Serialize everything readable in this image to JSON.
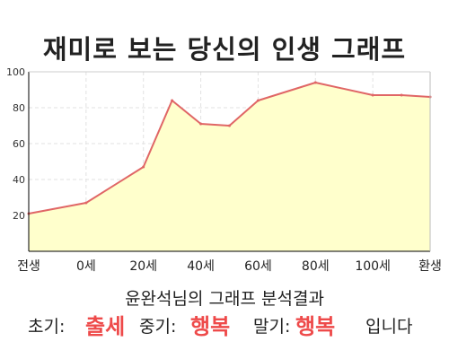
{
  "page": {
    "title": "재미로 보는 당신의 인생 그래프"
  },
  "chart_data": {
    "type": "area",
    "title": "재미로 보는 당신의 인생 그래프",
    "xlabel": "",
    "ylabel": "",
    "x_ticks": [
      "전생",
      "0세",
      "20세",
      "40세",
      "60세",
      "80세",
      "100세",
      "환생"
    ],
    "y_ticks": [
      20,
      40,
      60,
      80,
      100
    ],
    "ylim": [
      0,
      100
    ],
    "grid": true,
    "legend": "none",
    "line_color": "#e06666",
    "fill_color": "#ffffcc",
    "series": [
      {
        "x": [
          -20,
          0,
          20,
          30,
          40,
          50,
          60,
          80,
          100,
          110,
          120
        ],
        "values": [
          21,
          27,
          47,
          84,
          71,
          70,
          84,
          94,
          87,
          87,
          86
        ]
      }
    ]
  },
  "result": {
    "subtitle": "윤완석님의 그래프 분석결과",
    "early_label": "초기:",
    "early_value": "출세",
    "middle_label": "중기:",
    "middle_value": "행복",
    "late_label": "말기:",
    "late_value": "행복",
    "ending": "입니다"
  },
  "colors": {
    "accent": "#ee4a4a",
    "line": "#e06666",
    "fill": "#ffffcc"
  }
}
